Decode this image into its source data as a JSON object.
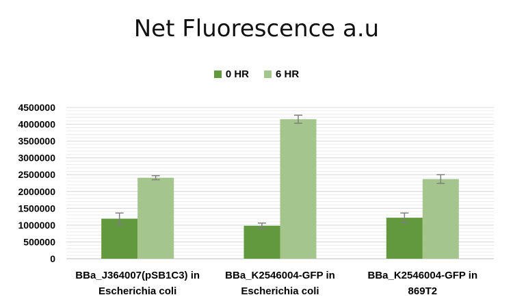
{
  "chart_data": {
    "type": "bar",
    "title": "Net Fluorescence a.u",
    "xlabel": "",
    "ylabel": "",
    "ylim": [
      0,
      4500000
    ],
    "ytick_step": 500000,
    "yticks": [
      "0",
      "500000",
      "1000000",
      "1500000",
      "2000000",
      "2500000",
      "3000000",
      "3500000",
      "4000000",
      "4500000"
    ],
    "categories": [
      [
        "BBa_J364007(pSB1C3) in",
        "Escherichia coli"
      ],
      [
        "BBa_K2546004-GFP in",
        "Escherichia coli"
      ],
      [
        "BBa_K2546004-GFP in",
        "869T2"
      ]
    ],
    "series": [
      {
        "name": "0 HR",
        "color": "#62993e",
        "values": [
          1190000,
          980000,
          1220000
        ],
        "errors": [
          170000,
          80000,
          140000
        ]
      },
      {
        "name": "6 HR",
        "color": "#a4c68d",
        "values": [
          2410000,
          4150000,
          2370000
        ],
        "errors": [
          60000,
          120000,
          130000
        ]
      }
    ],
    "grid": true,
    "legend_position": "top-center"
  }
}
